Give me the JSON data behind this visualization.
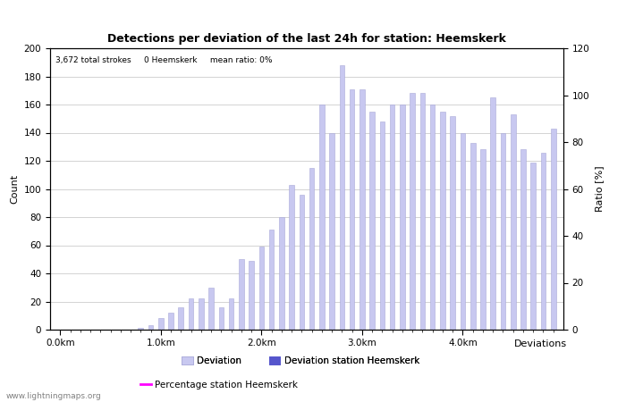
{
  "title": "Detections per deviation of the last 24h for station: Heemskerk",
  "subtitle": "3,672 total strokes     0 Heemskerk     mean ratio: 0%",
  "xlabel": "Deviations",
  "ylabel_left": "Count",
  "ylabel_right": "Ratio [%]",
  "ylim_left": [
    0,
    200
  ],
  "ylim_right": [
    0,
    120
  ],
  "yticks_left": [
    0,
    20,
    40,
    60,
    80,
    100,
    120,
    140,
    160,
    180,
    200
  ],
  "yticks_right": [
    0,
    20,
    40,
    60,
    80,
    100,
    120
  ],
  "xtick_labels": [
    "0.0km",
    "1.0km",
    "2.0km",
    "3.0km",
    "4.0km"
  ],
  "xtick_positions": [
    0,
    10,
    20,
    30,
    40
  ],
  "num_bars": 50,
  "bar_values": [
    0,
    0,
    0,
    0,
    0,
    0,
    0,
    0,
    1,
    3,
    8,
    12,
    16,
    22,
    22,
    30,
    16,
    22,
    50,
    49,
    59,
    71,
    80,
    103,
    96,
    115,
    160,
    140,
    188,
    171,
    171,
    155,
    148,
    160,
    160,
    168,
    168,
    160,
    155,
    152,
    140,
    133,
    128,
    165,
    140,
    153,
    128,
    119,
    126,
    143
  ],
  "bar_color": "#c8c8f0",
  "bar_edge_color": "#a8a8d8",
  "station_bar_color": "#5555cc",
  "line_color": "#ff00ff",
  "watermark": "www.lightningmaps.org",
  "legend_deviation_label": "Deviation",
  "legend_station_label": "Deviation station Heemskerk",
  "legend_percentage_label": "Percentage station Heemskerk",
  "grid_color": "#cccccc",
  "background_color": "#ffffff",
  "title_fontsize": 9,
  "axis_fontsize": 8,
  "tick_fontsize": 7.5
}
